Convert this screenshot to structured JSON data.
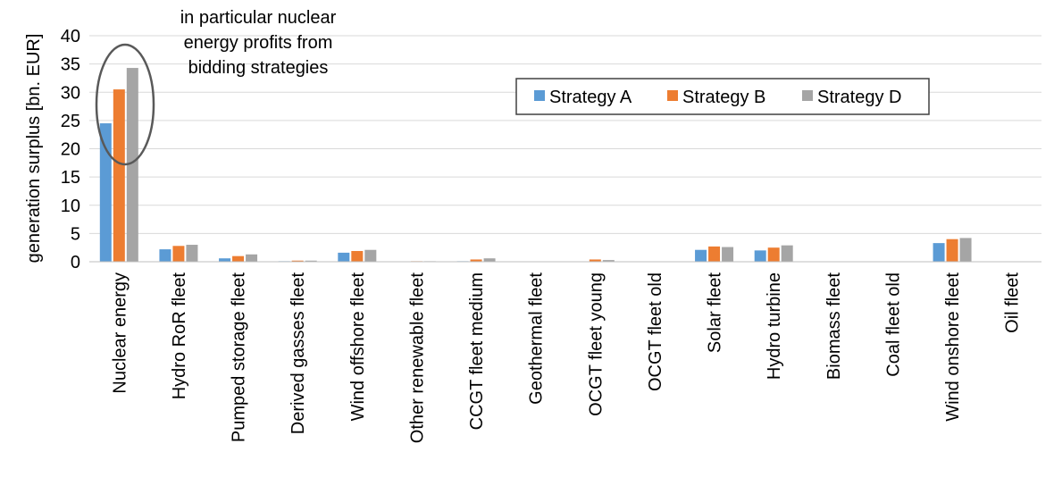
{
  "chart_data": {
    "type": "bar",
    "ylabel": "generation surplus [bn. EUR]",
    "ylim": [
      0,
      40
    ],
    "yticks": [
      "0",
      "5",
      "10",
      "15",
      "20",
      "25",
      "30",
      "35",
      "40"
    ],
    "grid": true,
    "legend_position": "top-right",
    "categories": [
      "Nuclear energy",
      "Hydro RoR fleet",
      "Pumped storage fleet",
      "Derived gasses fleet",
      "Wind offshore fleet",
      "Other renewable fleet",
      "CCGT fleet medium",
      "Geothermal fleet",
      "OCGT fleet young",
      "OCGT fleet old",
      "Solar fleet",
      "Hydro turbine",
      "Biomass fleet",
      "Coal fleet old",
      "Wind onshore fleet",
      "Oil fleet"
    ],
    "series": [
      {
        "name": "Strategy A",
        "color": "#5b9bd5",
        "values": [
          24.5,
          2.2,
          0.6,
          0.1,
          1.6,
          0.0,
          0.1,
          0.0,
          0.0,
          0.0,
          2.1,
          2.0,
          0.0,
          0.0,
          3.3,
          0.0
        ]
      },
      {
        "name": "Strategy B",
        "color": "#ed7d31",
        "values": [
          30.5,
          2.8,
          1.0,
          0.2,
          1.9,
          0.1,
          0.4,
          0.0,
          0.4,
          0.0,
          2.7,
          2.5,
          0.0,
          0.0,
          4.0,
          0.0
        ]
      },
      {
        "name": "Strategy D",
        "color": "#a5a5a5",
        "values": [
          34.3,
          3.0,
          1.3,
          0.2,
          2.1,
          0.1,
          0.6,
          0.0,
          0.3,
          0.0,
          2.6,
          2.9,
          0.0,
          0.0,
          4.2,
          0.0
        ]
      }
    ],
    "annotation": {
      "lines": [
        "in particular nuclear",
        "energy profits from",
        "bidding strategies"
      ]
    }
  }
}
